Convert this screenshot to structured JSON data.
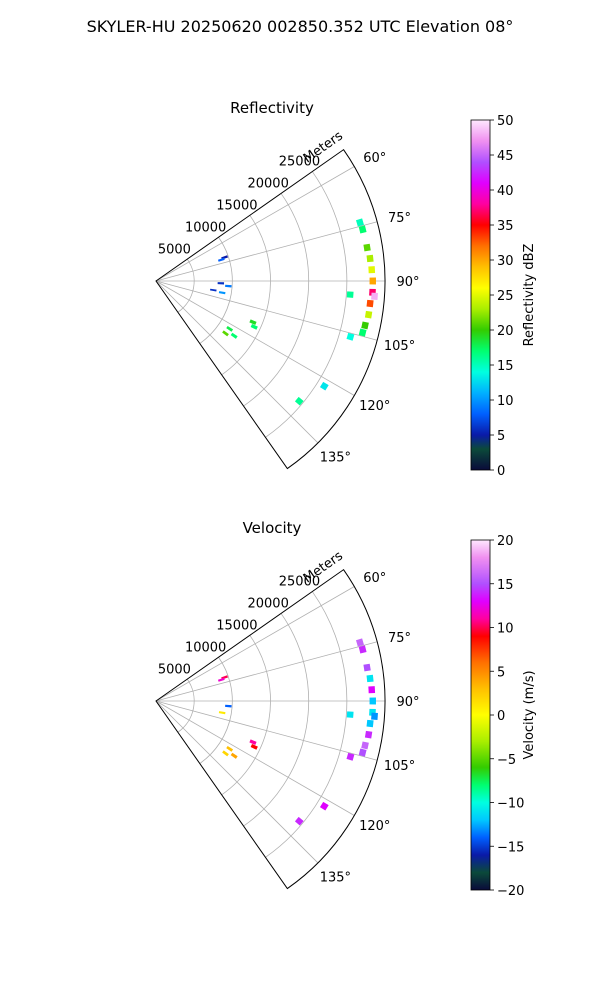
{
  "figure": {
    "suptitle": "SKYLER-HU  20250620  002850.352 UTC Elevation 08°"
  },
  "chart_data": [
    {
      "type": "polar_sector",
      "title": "Reflectivity",
      "range_label": "Meters",
      "theta_range_deg": [
        55,
        145
      ],
      "r_max": 30000,
      "r_ticks": [
        5000,
        10000,
        15000,
        20000,
        25000
      ],
      "r_tick_labels": [
        "5000",
        "10000",
        "15000",
        "20000",
        "25000"
      ],
      "theta_ticks": [
        60,
        75,
        90,
        105,
        120,
        135
      ],
      "theta_tick_labels": [
        "60°",
        "75°",
        "90°",
        "105°",
        "120°",
        "135°"
      ],
      "grid": true,
      "colorbar": {
        "label": "Reflectivity dBZ",
        "min": 0,
        "max": 50,
        "ticks": [
          0,
          5,
          10,
          15,
          20,
          25,
          30,
          35,
          40,
          45,
          50
        ],
        "tick_labels": [
          "0",
          "5",
          "10",
          "15",
          "20",
          "25",
          "30",
          "35",
          "40",
          "45",
          "50"
        ],
        "stops": [
          [
            0,
            "#0a0a3a"
          ],
          [
            3,
            "#0b4a3a"
          ],
          [
            5,
            "#0a1aa8"
          ],
          [
            8,
            "#0060ff"
          ],
          [
            11,
            "#00b0ff"
          ],
          [
            14,
            "#00ffe0"
          ],
          [
            17,
            "#00ff70"
          ],
          [
            20,
            "#33cc00"
          ],
          [
            23,
            "#aaee00"
          ],
          [
            26,
            "#ffff00"
          ],
          [
            29,
            "#ffc000"
          ],
          [
            32,
            "#ff7000"
          ],
          [
            35,
            "#ff0000"
          ],
          [
            38,
            "#ff00a0"
          ],
          [
            41,
            "#e000ff"
          ],
          [
            44,
            "#b050ff"
          ],
          [
            47,
            "#f090f0"
          ],
          [
            50,
            "#ffe8ff"
          ]
        ]
      },
      "echoes": [
        {
          "theta": 74,
          "r": 27800,
          "value": 15
        },
        {
          "theta": 76,
          "r": 27900,
          "value": 17
        },
        {
          "theta": 81,
          "r": 28000,
          "value": 21
        },
        {
          "theta": 84,
          "r": 28200,
          "value": 23
        },
        {
          "theta": 87,
          "r": 28300,
          "value": 25
        },
        {
          "theta": 90,
          "r": 28400,
          "value": 30
        },
        {
          "theta": 93,
          "r": 28400,
          "value": 37
        },
        {
          "theta": 94,
          "r": 28700,
          "value": 48
        },
        {
          "theta": 96,
          "r": 28200,
          "value": 33
        },
        {
          "theta": 99,
          "r": 28200,
          "value": 24
        },
        {
          "theta": 102,
          "r": 28000,
          "value": 20
        },
        {
          "theta": 104,
          "r": 27900,
          "value": 17
        },
        {
          "theta": 94,
          "r": 25500,
          "value": 16
        },
        {
          "theta": 106,
          "r": 26500,
          "value": 14
        },
        {
          "theta": 71,
          "r": 9500,
          "value": 5
        },
        {
          "theta": 72,
          "r": 9000,
          "value": 8
        },
        {
          "theta": 92,
          "r": 8500,
          "value": 6
        },
        {
          "theta": 94,
          "r": 9500,
          "value": 9
        },
        {
          "theta": 99,
          "r": 7600,
          "value": 6
        },
        {
          "theta": 100,
          "r": 8800,
          "value": 10
        },
        {
          "theta": 123,
          "r": 11500,
          "value": 18
        },
        {
          "theta": 125,
          "r": 12500,
          "value": 17
        },
        {
          "theta": 127,
          "r": 11400,
          "value": 21
        },
        {
          "theta": 113,
          "r": 13800,
          "value": 19
        },
        {
          "theta": 115,
          "r": 14200,
          "value": 17
        },
        {
          "theta": 122,
          "r": 26000,
          "value": 13
        },
        {
          "theta": 130,
          "r": 24500,
          "value": 16
        }
      ]
    },
    {
      "type": "polar_sector",
      "title": "Velocity",
      "range_label": "Meters",
      "theta_range_deg": [
        55,
        145
      ],
      "r_max": 30000,
      "r_ticks": [
        5000,
        10000,
        15000,
        20000,
        25000
      ],
      "r_tick_labels": [
        "5000",
        "10000",
        "15000",
        "20000",
        "25000"
      ],
      "theta_ticks": [
        60,
        75,
        90,
        105,
        120,
        135
      ],
      "theta_tick_labels": [
        "60°",
        "75°",
        "90°",
        "105°",
        "120°",
        "135°"
      ],
      "grid": true,
      "colorbar": {
        "label": "Velocity (m/s)",
        "min": -20,
        "max": 20,
        "ticks": [
          -20,
          -15,
          -10,
          -5,
          0,
          5,
          10,
          15,
          20
        ],
        "tick_labels": [
          "−20",
          "−15",
          "−10",
          "−5",
          "0",
          "5",
          "10",
          "15",
          "20"
        ],
        "stops": [
          [
            -20,
            "#0a0a3a"
          ],
          [
            -18,
            "#0b4a3a"
          ],
          [
            -16,
            "#0a1aa8"
          ],
          [
            -14,
            "#0060ff"
          ],
          [
            -12,
            "#00c8ff"
          ],
          [
            -10,
            "#00ffe0"
          ],
          [
            -8,
            "#00ff70"
          ],
          [
            -6,
            "#33cc00"
          ],
          [
            -3,
            "#aaee00"
          ],
          [
            0,
            "#ffff00"
          ],
          [
            3,
            "#ffc000"
          ],
          [
            6,
            "#ff7000"
          ],
          [
            9,
            "#ff0000"
          ],
          [
            11,
            "#ff00a0"
          ],
          [
            13,
            "#e000ff"
          ],
          [
            15,
            "#b050ff"
          ],
          [
            18,
            "#f090f0"
          ],
          [
            20,
            "#ffe8ff"
          ]
        ]
      },
      "echoes": [
        {
          "theta": 74,
          "r": 27800,
          "value": 16
        },
        {
          "theta": 76,
          "r": 27900,
          "value": 14
        },
        {
          "theta": 81,
          "r": 28000,
          "value": 15
        },
        {
          "theta": 84,
          "r": 28200,
          "value": -11
        },
        {
          "theta": 87,
          "r": 28300,
          "value": 13
        },
        {
          "theta": 90,
          "r": 28400,
          "value": -12
        },
        {
          "theta": 93,
          "r": 28400,
          "value": -11
        },
        {
          "theta": 94,
          "r": 28700,
          "value": -13
        },
        {
          "theta": 96,
          "r": 28200,
          "value": -12
        },
        {
          "theta": 99,
          "r": 28200,
          "value": 14
        },
        {
          "theta": 102,
          "r": 28000,
          "value": 16
        },
        {
          "theta": 104,
          "r": 27900,
          "value": 15
        },
        {
          "theta": 94,
          "r": 25500,
          "value": -11
        },
        {
          "theta": 106,
          "r": 26500,
          "value": 14
        },
        {
          "theta": 71,
          "r": 9500,
          "value": 10
        },
        {
          "theta": 72,
          "r": 9000,
          "value": 12
        },
        {
          "theta": 94,
          "r": 9500,
          "value": -14
        },
        {
          "theta": 100,
          "r": 8800,
          "value": 1
        },
        {
          "theta": 123,
          "r": 11500,
          "value": 3
        },
        {
          "theta": 125,
          "r": 12500,
          "value": 4
        },
        {
          "theta": 127,
          "r": 11400,
          "value": 2
        },
        {
          "theta": 113,
          "r": 13800,
          "value": 11
        },
        {
          "theta": 115,
          "r": 14200,
          "value": 9
        },
        {
          "theta": 122,
          "r": 26000,
          "value": 13
        },
        {
          "theta": 130,
          "r": 24500,
          "value": 14
        }
      ]
    }
  ]
}
